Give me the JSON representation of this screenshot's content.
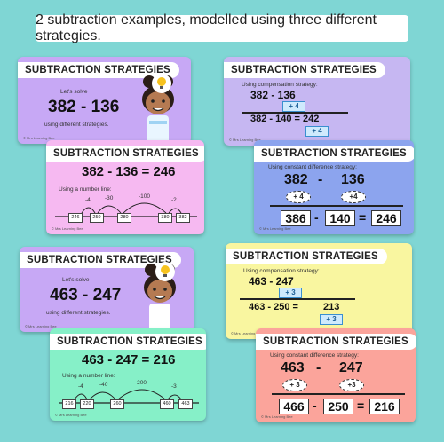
{
  "banner": "2 subtraction examples, modelled using three different strategies.",
  "header": "SUBTRACTION STRATEGIES",
  "copyright": "© Mrs Learning Bee",
  "ex1": {
    "intro_top": "Let's solve",
    "problem": "382 - 136",
    "intro_bottom": "using different strategies.",
    "equation": "382 - 136 = 246",
    "numberline_label": "Using a number line:",
    "jumps": [
      "-4",
      "-30",
      "-100",
      "-2"
    ],
    "boxes": [
      "246",
      "250",
      "280",
      "380",
      "382"
    ],
    "comp_label": "Using compensation strategy:",
    "comp_problem": "382 - 136",
    "comp_adj": "+ 4",
    "comp_line": "382 - 140 = 242",
    "comp_final_adj": "+ 4",
    "cd_label": "Using constant difference strategy:",
    "cd_a": "382",
    "cd_minus": "-",
    "cd_b": "136",
    "cd_adj_a": "+ 4",
    "cd_adj_b": "+4",
    "cd_ans_a": "386",
    "cd_ans_b": "140",
    "cd_ans_c": "246",
    "eq_sign": "="
  },
  "ex2": {
    "intro_top": "Let's solve",
    "problem": "463 - 247",
    "intro_bottom": "using different strategies.",
    "equation": "463 - 247 = 216",
    "numberline_label": "Using a number line:",
    "jumps": [
      "-4",
      "-40",
      "-200",
      "-3"
    ],
    "boxes": [
      "216",
      "220",
      "260",
      "460",
      "463"
    ],
    "comp_label": "Using compensation strategy:",
    "comp_problem": "463 - 247",
    "comp_adj": "+ 3",
    "comp_line_a": "463 - 250 =",
    "comp_line_b": "213",
    "comp_final_adj": "+ 3",
    "cd_label": "Using constant difference strategy:",
    "cd_a": "463",
    "cd_minus": "-",
    "cd_b": "247",
    "cd_adj_a": "+ 3",
    "cd_adj_b": "+3",
    "cd_ans_a": "466",
    "cd_ans_b": "250",
    "cd_ans_c": "216",
    "eq_sign": "="
  },
  "colors": {
    "background": "#7fd6d4",
    "purple": "#c7a8f5",
    "pink": "#f6b9f1",
    "lavender": "#c6b7f2",
    "blue": "#8ca4ee",
    "mint": "#86f0c8",
    "yellow": "#f9f6a0",
    "salmon": "#fba49b"
  }
}
